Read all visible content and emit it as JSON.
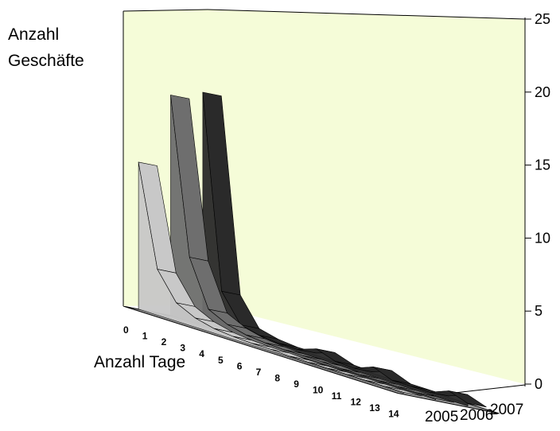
{
  "chart_data": {
    "type": "area",
    "subtype": "3d-ribbon",
    "title": "",
    "ylabel_lines": [
      "Anzahl",
      "Geschäfte"
    ],
    "xlabel": "Anzahl Tage",
    "categories": [
      "0",
      "1",
      "2",
      "3",
      "4",
      "5",
      "6",
      "7",
      "8",
      "9",
      "10",
      "11",
      "12",
      "13",
      "14"
    ],
    "z_categories": [
      "2005",
      "2006",
      "2007"
    ],
    "y_ticks": [
      "0",
      "5",
      "10",
      "15",
      "20",
      "25"
    ],
    "ylim": [
      0,
      25
    ],
    "grid": false,
    "legend": "none",
    "series": [
      {
        "name": "2005",
        "color": "#c8c8c8",
        "values": [
          16,
          5,
          2,
          1,
          0.5,
          0.3,
          0.2,
          0.2,
          0.1,
          0.1,
          0.1,
          0.1,
          0.1,
          0.1,
          0.1
        ]
      },
      {
        "name": "2006",
        "color": "#6e6e6e",
        "values": [
          24,
          7,
          2,
          1,
          0.5,
          0.3,
          0.2,
          0.2,
          0.2,
          0.1,
          0.1,
          0.1,
          0.1,
          0.1,
          0.1
        ]
      },
      {
        "name": "2007",
        "color": "#2a2a2a",
        "values": [
          25,
          4,
          1,
          0.5,
          0.3,
          0.3,
          1,
          0.3,
          0.2,
          1,
          0.2,
          0.2,
          0.2,
          1,
          0.3
        ]
      }
    ],
    "colors": {
      "back_wall": "#f5fcd8",
      "floor": "#9a9a9a",
      "floor_top": "#b4b4b4"
    }
  }
}
